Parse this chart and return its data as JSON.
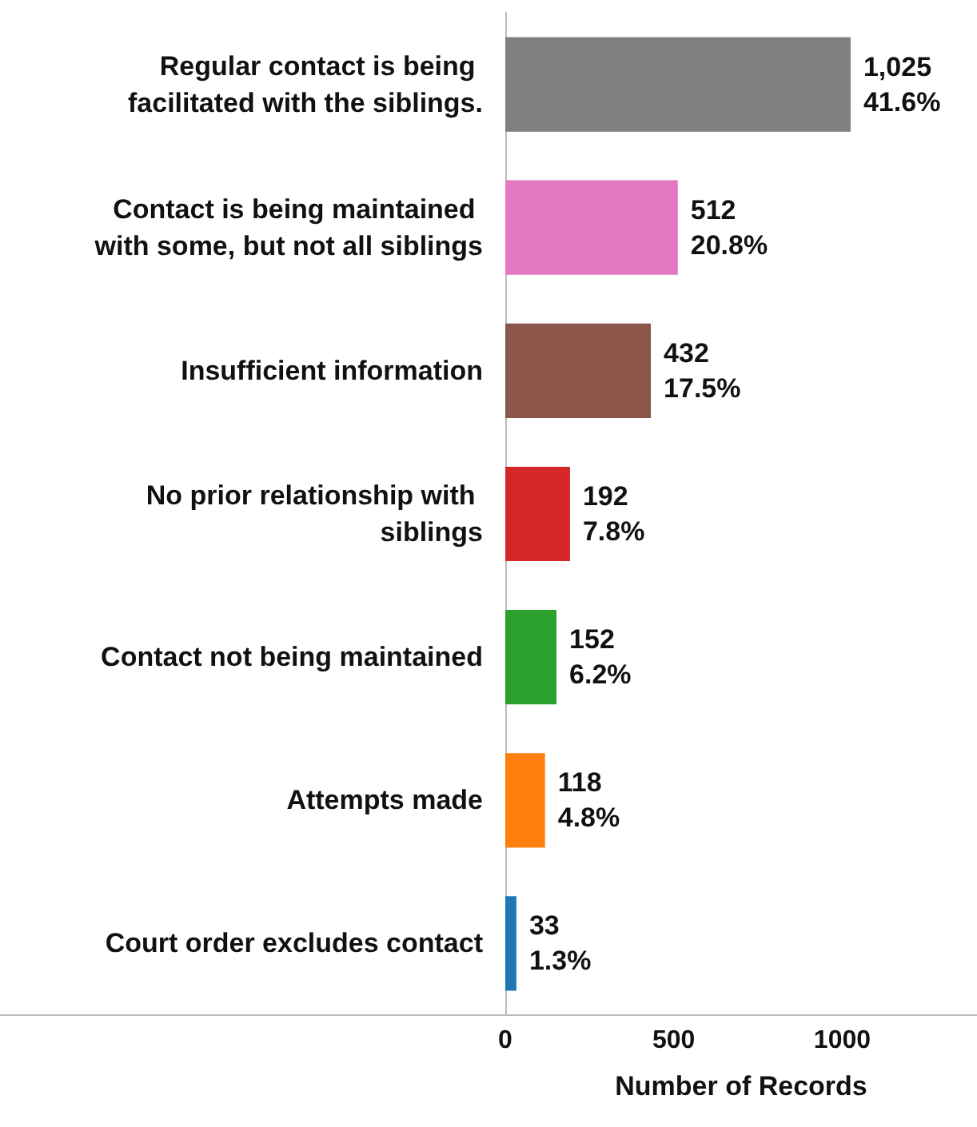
{
  "chart_data": {
    "type": "bar",
    "orientation": "horizontal",
    "xlabel": "Number of Records",
    "categories": [
      "Regular contact is being facilitated with the siblings.",
      "Contact is being maintained with some, but not all siblings",
      "Insufficient information",
      "No prior relationship with siblings",
      "Contact not being maintained",
      "Attempts made",
      "Court order excludes contact"
    ],
    "values": [
      1025,
      512,
      432,
      192,
      152,
      118,
      33
    ],
    "colors": [
      "#7f7f7f",
      "#e377c2",
      "#8c564b",
      "#d62728",
      "#2ca02c",
      "#ff7f0e",
      "#1f77b4"
    ],
    "value_labels": [
      "1,025\n41.6%",
      "512\n20.8%",
      "432\n17.5%",
      "192\n7.8%",
      "152\n6.2%",
      "118\n4.8%",
      "33\n1.3%"
    ],
    "xlim": [
      0,
      1400
    ],
    "xticks": [
      0,
      500,
      1000
    ],
    "grid": false
  }
}
